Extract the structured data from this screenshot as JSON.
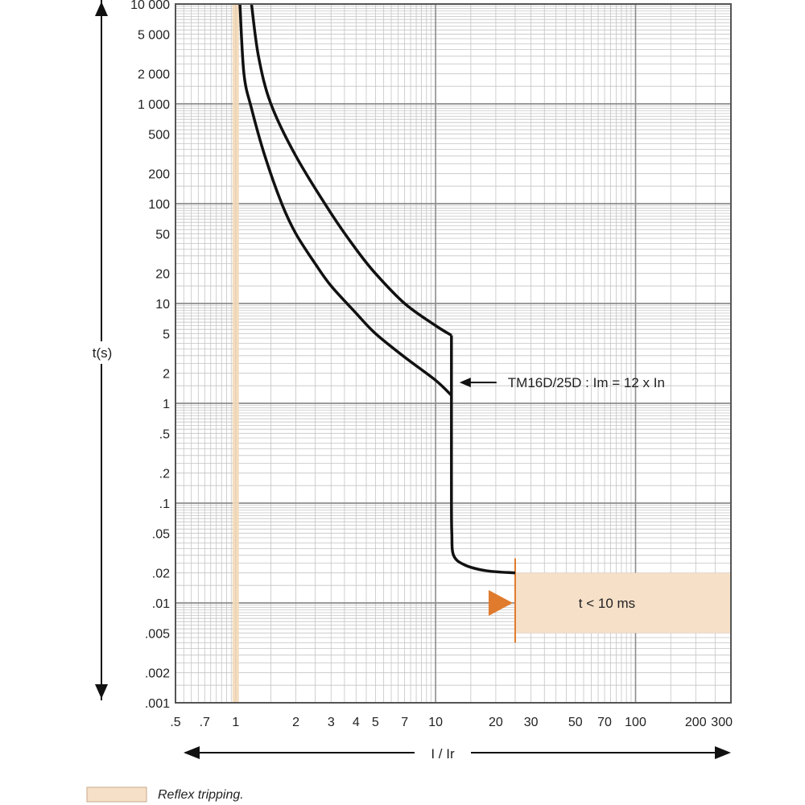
{
  "chart_data": {
    "type": "line",
    "title": "",
    "xlabel": "I / Ir",
    "ylabel": "t(s)",
    "x_scale": "log",
    "y_scale": "log",
    "xlim": [
      0.5,
      300
    ],
    "ylim": [
      0.001,
      10000
    ],
    "grid": true,
    "x_ticks": [
      {
        "value": 0.5,
        "label": ".5"
      },
      {
        "value": 0.7,
        "label": ".7"
      },
      {
        "value": 1,
        "label": "1"
      },
      {
        "value": 2,
        "label": "2"
      },
      {
        "value": 3,
        "label": "3"
      },
      {
        "value": 4,
        "label": "4"
      },
      {
        "value": 5,
        "label": "5"
      },
      {
        "value": 7,
        "label": "7"
      },
      {
        "value": 10,
        "label": "10"
      },
      {
        "value": 20,
        "label": "20"
      },
      {
        "value": 30,
        "label": "30"
      },
      {
        "value": 50,
        "label": "50"
      },
      {
        "value": 70,
        "label": "70"
      },
      {
        "value": 100,
        "label": "100"
      },
      {
        "value": 200,
        "label": "200"
      },
      {
        "value": 300,
        "label": "300"
      }
    ],
    "y_ticks": [
      {
        "value": 10000,
        "label": "10 000"
      },
      {
        "value": 5000,
        "label": "5 000"
      },
      {
        "value": 2000,
        "label": "2 000"
      },
      {
        "value": 1000,
        "label": "1 000"
      },
      {
        "value": 500,
        "label": "500"
      },
      {
        "value": 200,
        "label": "200"
      },
      {
        "value": 100,
        "label": "100"
      },
      {
        "value": 50,
        "label": "50"
      },
      {
        "value": 20,
        "label": "20"
      },
      {
        "value": 10,
        "label": "10"
      },
      {
        "value": 5,
        "label": "5"
      },
      {
        "value": 2,
        "label": "2"
      },
      {
        "value": 1,
        "label": "1"
      },
      {
        "value": 0.5,
        "label": ".5"
      },
      {
        "value": 0.2,
        "label": ".2"
      },
      {
        "value": 0.1,
        "label": ".1"
      },
      {
        "value": 0.05,
        "label": ".05"
      },
      {
        "value": 0.02,
        "label": ".02"
      },
      {
        "value": 0.01,
        "label": ".01"
      },
      {
        "value": 0.005,
        "label": ".005"
      },
      {
        "value": 0.002,
        "label": ".002"
      },
      {
        "value": 0.001,
        "label": ".001"
      }
    ],
    "series": [
      {
        "points": [
          [
            1.05,
            10000
          ],
          [
            1.1,
            2000
          ],
          [
            1.2,
            900
          ],
          [
            1.4,
            300
          ],
          [
            1.7,
            100
          ],
          [
            2,
            50
          ],
          [
            2.5,
            25
          ],
          [
            3,
            15
          ],
          [
            4,
            8
          ],
          [
            5,
            5
          ],
          [
            7,
            2.9
          ],
          [
            10,
            1.7
          ],
          [
            12,
            1.2
          ]
        ]
      },
      {
        "points": [
          [
            1.2,
            10000
          ],
          [
            1.3,
            3000
          ],
          [
            1.5,
            1000
          ],
          [
            2,
            300
          ],
          [
            3,
            80
          ],
          [
            4,
            35
          ],
          [
            5,
            20
          ],
          [
            7,
            10
          ],
          [
            10,
            6
          ],
          [
            12,
            4.8
          ]
        ]
      },
      {
        "points": [
          [
            12,
            4.8
          ],
          [
            12,
            1.2
          ],
          [
            12,
            0.3
          ],
          [
            12,
            0.1
          ],
          [
            12.05,
            0.05
          ],
          [
            12.3,
            0.03
          ],
          [
            14,
            0.024
          ],
          [
            18,
            0.021
          ],
          [
            25,
            0.02
          ]
        ]
      }
    ],
    "annotations": [
      {
        "text": "TM16D/25D : Im = 12 x In",
        "x": 12,
        "y": 1.2
      },
      {
        "text": "t < 10 ms",
        "x_range": [
          25,
          300
        ],
        "y_range": [
          0.005,
          0.02
        ]
      }
    ],
    "reflex_band": {
      "x": 1,
      "color": "#f4d9b8"
    },
    "reflex_zone": {
      "x_range": [
        25,
        300
      ],
      "y_range": [
        0.005,
        0.02
      ],
      "color": "#f6e0c8",
      "edge_color": "#e07a2c"
    },
    "legend": {
      "label": "Reflex tripping.",
      "color": "#f6e0c8",
      "position": "bottom-left"
    }
  }
}
